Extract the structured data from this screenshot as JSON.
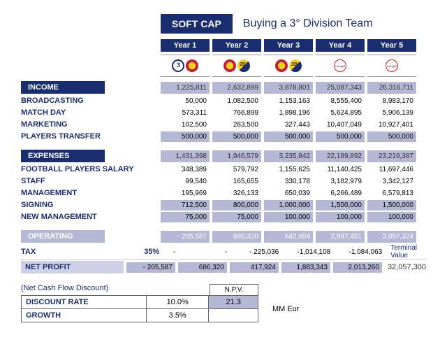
{
  "header": {
    "soft_cap": "SOFT CAP",
    "title": "Buying a 3° Division Team"
  },
  "years": [
    "Year 1",
    "Year 2",
    "Year 3",
    "Year 4",
    "Year 5"
  ],
  "income": {
    "label": "INCOME",
    "totals": [
      "1,225,811",
      "2,632,899",
      "3,878,801",
      "25,087,343",
      "26,316,711"
    ],
    "rows": [
      {
        "label": "BROADCASTING",
        "vals": [
          "50,000",
          "1,082,500",
          "1,153,163",
          "8,555,400",
          "8,983,170"
        ],
        "hl": [
          false,
          false,
          false,
          false,
          false
        ]
      },
      {
        "label": "MATCH DAY",
        "vals": [
          "573,311",
          "766,899",
          "1,898,196",
          "5,624,895",
          "5,906,139"
        ],
        "hl": [
          false,
          false,
          false,
          false,
          false
        ]
      },
      {
        "label": "MARKETING",
        "vals": [
          "102,500",
          "283,500",
          "327,443",
          "10,407,049",
          "10,927,401"
        ],
        "hl": [
          false,
          false,
          false,
          false,
          false
        ]
      },
      {
        "label": "PLAYERS TRANSFER",
        "vals": [
          "500,000",
          "500,000",
          "500,000",
          "500,000",
          "500,000"
        ],
        "hl": [
          true,
          true,
          true,
          true,
          true
        ]
      }
    ]
  },
  "expenses": {
    "label": "EXPENSES",
    "totals": [
      "1,431,398",
      "1,946,579",
      "3,235,842",
      "22,189,892",
      "23,219,387"
    ],
    "rows": [
      {
        "label": "FOOTBALL PLAYERS SALARY",
        "vals": [
          "348,389",
          "579,792",
          "1,155,625",
          "11,140,425",
          "11,697,446"
        ],
        "hl": [
          false,
          false,
          false,
          false,
          false
        ]
      },
      {
        "label": "STAFF",
        "vals": [
          "99,540",
          "165,655",
          "330,178",
          "3,182,979",
          "3,342,127"
        ],
        "hl": [
          false,
          false,
          false,
          false,
          false
        ]
      },
      {
        "label": "MANAGEMENT",
        "vals": [
          "195,969",
          "326,133",
          "650,039",
          "6,266,489",
          "6,579,813"
        ],
        "hl": [
          false,
          false,
          false,
          false,
          false
        ]
      },
      {
        "label": "SIGNING",
        "vals": [
          "712,500",
          "800,000",
          "1,000,000",
          "1,500,000",
          "1,500,000"
        ],
        "hl": [
          true,
          true,
          true,
          true,
          true
        ]
      },
      {
        "label": "NEW MANAGEMENT",
        "vals": [
          "75,000",
          "75,000",
          "100,000",
          "100,000",
          "100,000"
        ],
        "hl": [
          true,
          true,
          true,
          true,
          true
        ]
      }
    ]
  },
  "operating": {
    "label": "OPERATING",
    "vals": [
      "- 205,587",
      "686,320",
      "642,959",
      "2,897,451",
      "3,097,324"
    ]
  },
  "tax": {
    "label": "TAX",
    "pct": "35%",
    "vals": [
      "-",
      "-",
      "- 225,036",
      "-1,014,108",
      "-1,084,063"
    ]
  },
  "netprofit": {
    "label": "NET PROFIT",
    "vals": [
      "- 205,587",
      "686,320",
      "417,924",
      "1,883,343",
      "2,013,260"
    ]
  },
  "terminal": {
    "label": "Terminal Value",
    "value": "32,057,300"
  },
  "npv": {
    "title": "(Net Cash Flow Discount)",
    "header": "N.P.V.",
    "discount_label": "DISCOUNT RATE",
    "discount_val": "10.0%",
    "growth_label": "GROWTH",
    "growth_val": "3.5%",
    "result": "21.3",
    "unit": "MM Eur"
  }
}
